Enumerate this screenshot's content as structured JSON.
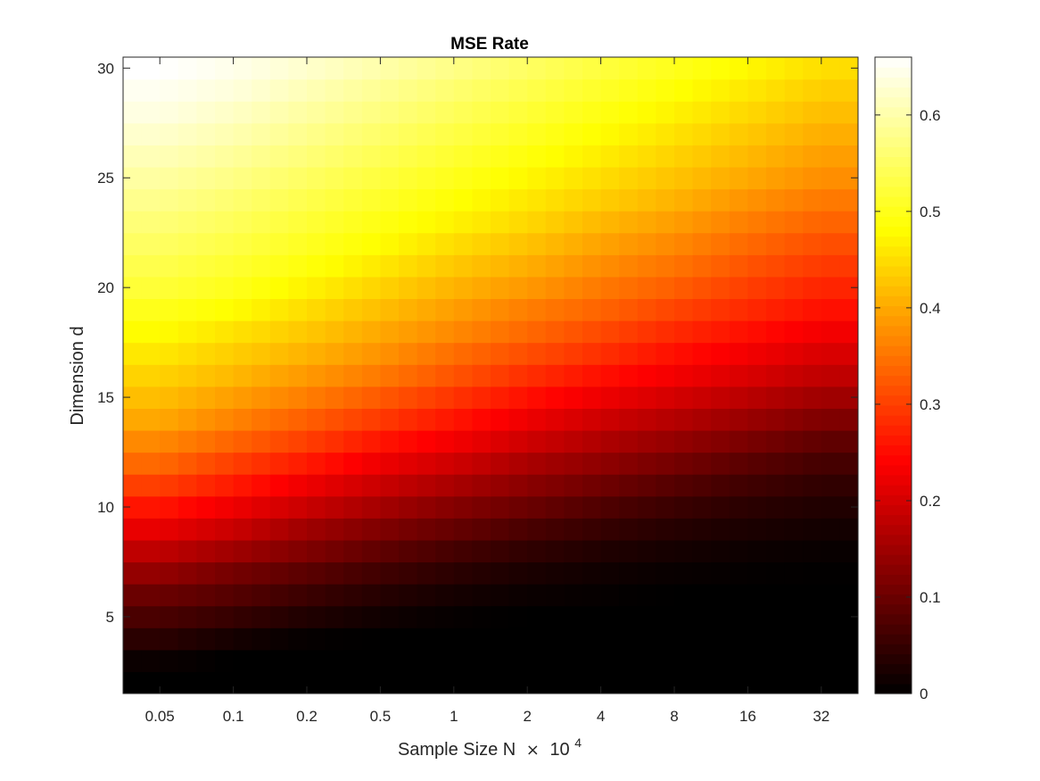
{
  "chart_data": {
    "type": "heatmap",
    "title": "MSE Rate",
    "xlabel": {
      "text": "Sample Size N",
      "times": "×",
      "base": "10",
      "exponent": "4"
    },
    "ylabel": "Dimension d",
    "x_categories": [
      "0.05",
      "0.1",
      "0.2",
      "0.5",
      "1",
      "2",
      "4",
      "8",
      "16",
      "32"
    ],
    "y_values": [
      2,
      3,
      4,
      5,
      6,
      7,
      8,
      9,
      10,
      11,
      12,
      13,
      14,
      15,
      16,
      17,
      18,
      19,
      20,
      21,
      22,
      23,
      24,
      25,
      26,
      27,
      28,
      29,
      30
    ],
    "y_ticks": [
      5,
      10,
      15,
      20,
      25,
      30
    ],
    "ylim": [
      1.5,
      30.5
    ],
    "colormap": "hot",
    "colorbar": {
      "min": 0,
      "max": 0.66,
      "ticks": [
        0,
        0.1,
        0.2,
        0.3,
        0.4,
        0.5,
        0.6
      ],
      "tick_labels": [
        "0",
        "0.1",
        "0.2",
        "0.3",
        "0.4",
        "0.5",
        "0.6"
      ]
    },
    "values": [
      [
        0.0,
        0.0,
        0.0,
        0.0,
        0.0,
        0.0,
        0.0,
        0.0,
        0.0,
        0.0
      ],
      [
        0.01,
        0.0,
        0.0,
        0.0,
        0.0,
        0.0,
        0.0,
        0.0,
        0.0,
        0.0
      ],
      [
        0.04,
        0.02,
        0.005,
        0.0,
        0.0,
        0.0,
        0.0,
        0.0,
        0.0,
        0.0
      ],
      [
        0.07,
        0.05,
        0.03,
        0.015,
        0.005,
        0.0,
        0.0,
        0.0,
        0.0,
        0.0
      ],
      [
        0.1,
        0.08,
        0.055,
        0.035,
        0.02,
        0.01,
        0.005,
        0.0,
        0.0,
        0.0
      ],
      [
        0.14,
        0.11,
        0.085,
        0.06,
        0.04,
        0.025,
        0.015,
        0.008,
        0.004,
        0.002
      ],
      [
        0.18,
        0.15,
        0.12,
        0.09,
        0.065,
        0.045,
        0.03,
        0.02,
        0.012,
        0.008
      ],
      [
        0.22,
        0.19,
        0.15,
        0.12,
        0.095,
        0.07,
        0.05,
        0.035,
        0.025,
        0.018
      ],
      [
        0.26,
        0.225,
        0.19,
        0.155,
        0.125,
        0.1,
        0.075,
        0.055,
        0.04,
        0.03
      ],
      [
        0.3,
        0.265,
        0.225,
        0.19,
        0.16,
        0.13,
        0.105,
        0.08,
        0.06,
        0.045
      ],
      [
        0.34,
        0.3,
        0.265,
        0.225,
        0.195,
        0.16,
        0.135,
        0.11,
        0.085,
        0.065
      ],
      [
        0.37,
        0.335,
        0.3,
        0.26,
        0.23,
        0.195,
        0.165,
        0.14,
        0.115,
        0.09
      ],
      [
        0.4,
        0.365,
        0.33,
        0.295,
        0.26,
        0.225,
        0.195,
        0.17,
        0.145,
        0.12
      ],
      [
        0.42,
        0.39,
        0.36,
        0.325,
        0.29,
        0.255,
        0.225,
        0.2,
        0.175,
        0.15
      ],
      [
        0.44,
        0.415,
        0.385,
        0.355,
        0.32,
        0.285,
        0.255,
        0.23,
        0.205,
        0.18
      ],
      [
        0.46,
        0.435,
        0.41,
        0.38,
        0.345,
        0.315,
        0.285,
        0.255,
        0.23,
        0.205
      ],
      [
        0.48,
        0.455,
        0.43,
        0.4,
        0.37,
        0.34,
        0.31,
        0.28,
        0.255,
        0.23
      ],
      [
        0.5,
        0.48,
        0.45,
        0.42,
        0.39,
        0.36,
        0.335,
        0.305,
        0.28,
        0.255
      ],
      [
        0.52,
        0.5,
        0.47,
        0.44,
        0.41,
        0.385,
        0.355,
        0.33,
        0.3,
        0.275
      ],
      [
        0.535,
        0.515,
        0.49,
        0.46,
        0.43,
        0.405,
        0.375,
        0.35,
        0.32,
        0.295
      ],
      [
        0.55,
        0.53,
        0.505,
        0.48,
        0.45,
        0.425,
        0.395,
        0.37,
        0.34,
        0.315
      ],
      [
        0.565,
        0.545,
        0.52,
        0.495,
        0.47,
        0.445,
        0.415,
        0.39,
        0.36,
        0.335
      ],
      [
        0.58,
        0.56,
        0.535,
        0.51,
        0.485,
        0.46,
        0.435,
        0.41,
        0.38,
        0.355
      ],
      [
        0.595,
        0.575,
        0.55,
        0.525,
        0.5,
        0.475,
        0.45,
        0.425,
        0.4,
        0.375
      ],
      [
        0.61,
        0.59,
        0.565,
        0.54,
        0.515,
        0.49,
        0.465,
        0.44,
        0.415,
        0.39
      ],
      [
        0.625,
        0.605,
        0.58,
        0.555,
        0.53,
        0.505,
        0.48,
        0.455,
        0.43,
        0.405
      ],
      [
        0.64,
        0.62,
        0.595,
        0.57,
        0.545,
        0.52,
        0.495,
        0.47,
        0.445,
        0.42
      ],
      [
        0.65,
        0.635,
        0.61,
        0.585,
        0.56,
        0.535,
        0.51,
        0.485,
        0.46,
        0.435
      ],
      [
        0.66,
        0.645,
        0.625,
        0.6,
        0.575,
        0.55,
        0.525,
        0.5,
        0.475,
        0.45
      ]
    ]
  }
}
